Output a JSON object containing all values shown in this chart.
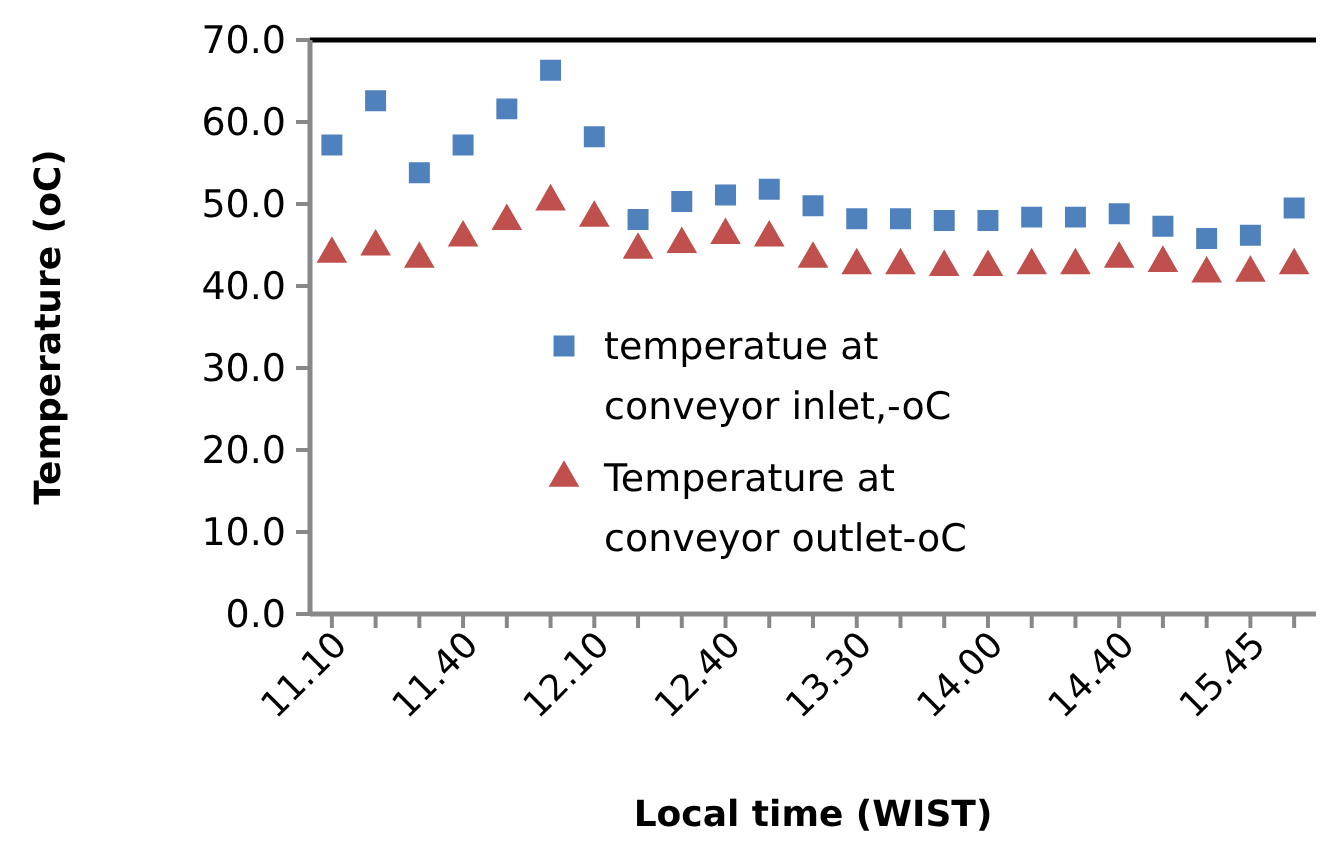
{
  "chart_data": {
    "type": "scatter",
    "xlabel": "Local time (WIST)",
    "ylabel": "Temperature (oC)",
    "categories": [
      "11.10",
      null,
      null,
      "11.40",
      null,
      null,
      "12.10",
      null,
      null,
      "12.40",
      null,
      null,
      "13.30",
      null,
      null,
      "14.00",
      null,
      null,
      "14.40",
      null,
      null,
      "15.45",
      null
    ],
    "ylim": [
      0,
      70
    ],
    "yticks": [
      {
        "value": 0,
        "label": "0.0"
      },
      {
        "value": 10,
        "label": "10.0"
      },
      {
        "value": 20,
        "label": "20.0"
      },
      {
        "value": 30,
        "label": "30.0"
      },
      {
        "value": 40,
        "label": "40.0"
      },
      {
        "value": 50,
        "label": "50.0"
      },
      {
        "value": 60,
        "label": "60.0"
      },
      {
        "value": 70,
        "label": "70.0"
      }
    ],
    "legend": "bottom",
    "series": [
      {
        "name": "temperatue at conveyor inlet,-oC",
        "color": "#4f81bd",
        "marker": "square",
        "values": [
          57.2,
          62.6,
          53.8,
          57.2,
          61.6,
          66.3,
          58.2,
          48.1,
          50.3,
          51.1,
          51.8,
          49.8,
          48.2,
          48.2,
          48.0,
          48.0,
          48.4,
          48.4,
          48.8,
          47.3,
          45.8,
          46.2,
          49.5
        ]
      },
      {
        "name": "Temperature at conveyor outlet-oC",
        "color": "#c0504d",
        "marker": "triangle",
        "values": [
          43.9,
          44.8,
          43.3,
          45.9,
          47.9,
          50.3,
          48.3,
          44.4,
          45.1,
          46.2,
          45.9,
          43.3,
          42.5,
          42.5,
          42.3,
          42.3,
          42.5,
          42.5,
          43.3,
          42.8,
          41.5,
          41.6,
          42.5
        ]
      }
    ]
  }
}
